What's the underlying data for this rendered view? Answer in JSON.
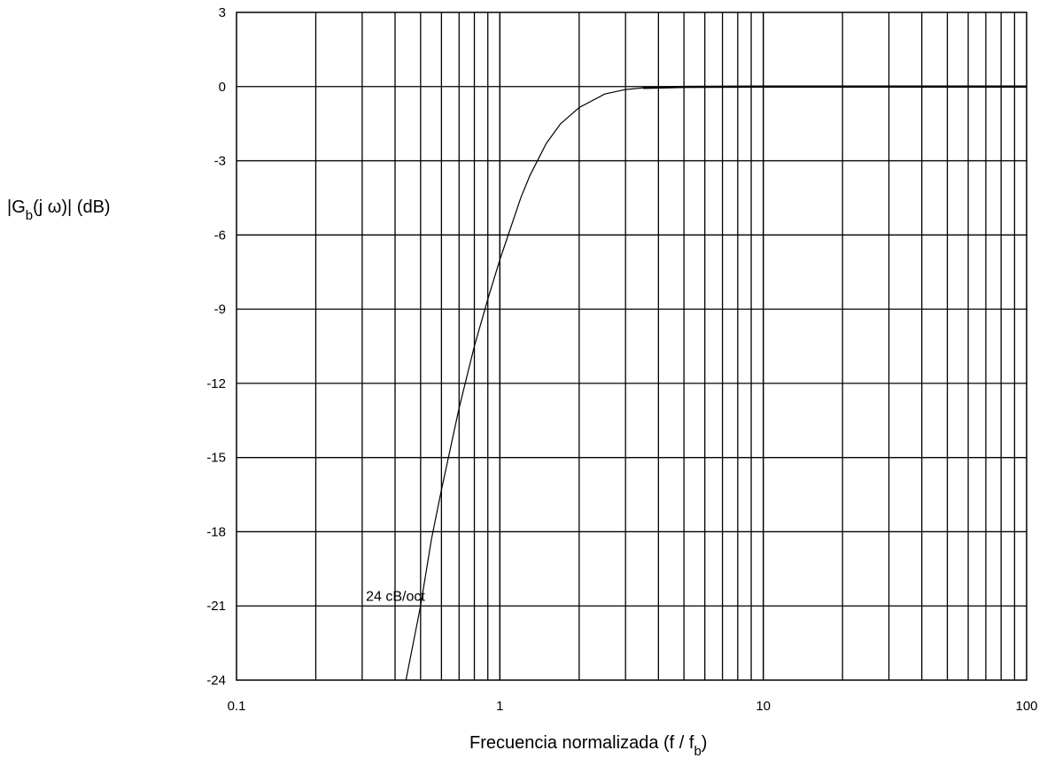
{
  "chart_data": {
    "type": "line",
    "title": "",
    "xscale": "log",
    "xlim": [
      0.1,
      100
    ],
    "ylim": [
      -24,
      3
    ],
    "grid": true,
    "xlabel": {
      "main": "Frecuencia normalizada (f / f",
      "sub": "b",
      "close": ")"
    },
    "ylabel": {
      "pre": "|G",
      "sub": "b",
      "post": "(j ω)|  (dB)"
    },
    "x_ticks": [
      {
        "value": 0.1,
        "label": "0.1"
      },
      {
        "value": 1,
        "label": "1"
      },
      {
        "value": 10,
        "label": "10"
      },
      {
        "value": 100,
        "label": "100"
      }
    ],
    "y_ticks": [
      {
        "value": 3,
        "label": "3"
      },
      {
        "value": 0,
        "label": "0"
      },
      {
        "value": -3,
        "label": "-3"
      },
      {
        "value": -6,
        "label": "-6"
      },
      {
        "value": -9,
        "label": "-9"
      },
      {
        "value": -12,
        "label": "-12"
      },
      {
        "value": -15,
        "label": "-15"
      },
      {
        "value": -18,
        "label": "-18"
      },
      {
        "value": -21,
        "label": "-21"
      },
      {
        "value": -24,
        "label": "-24"
      }
    ],
    "annotations": [
      {
        "text": "24 cB/oct",
        "x": 0.31,
        "y": -20.8
      }
    ],
    "series": [
      {
        "x": [
          0.44,
          0.5,
          0.55,
          0.6,
          0.7,
          0.8,
          0.9,
          1.0,
          1.1,
          1.2,
          1.3,
          1.5,
          1.7,
          2.0,
          2.5,
          3.0,
          3.5,
          5,
          10,
          20,
          50,
          100
        ],
        "y": [
          -24.0,
          -21.0,
          -18.3,
          -16.3,
          -13.0,
          -10.5,
          -8.6,
          -7.0,
          -5.7,
          -4.5,
          -3.6,
          -2.3,
          -1.5,
          -0.85,
          -0.3,
          -0.12,
          -0.05,
          -0.01,
          0,
          0,
          0,
          0
        ]
      }
    ]
  }
}
